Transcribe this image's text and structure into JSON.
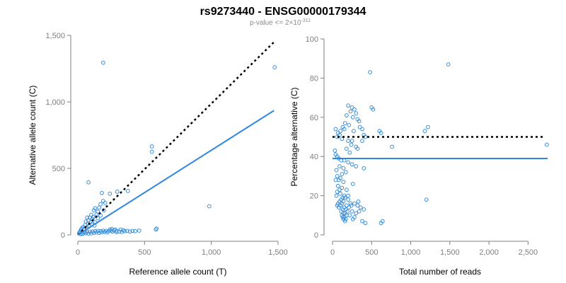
{
  "title": "rs9273440 - ENSG00000179344",
  "subtitle": {
    "text": "p-value <= 2×10",
    "exponent": "-311"
  },
  "colors": {
    "points": "#3a8fd8",
    "fit_line": "#2f86e0",
    "reference_line": "#000000",
    "axis": "#7f7f7f"
  },
  "chart_data": [
    {
      "type": "scatter",
      "title": "",
      "xlabel": "Reference allele count (T)",
      "ylabel": "Alternative allele count (C)",
      "xlim": [
        0,
        1500
      ],
      "ylim": [
        0,
        1500
      ],
      "xticks": [
        0,
        500,
        1000,
        1500
      ],
      "xtick_labels": [
        "0",
        "500",
        "1,000",
        "1,500"
      ],
      "yticks": [
        0,
        500,
        1000,
        1500
      ],
      "ytick_labels": [
        "0",
        "500",
        "1,000",
        "1,500"
      ],
      "grid": false,
      "lines": [
        {
          "style": "dotted",
          "color": "reference",
          "x": [
            0,
            1480
          ],
          "y": [
            0,
            1460
          ]
        },
        {
          "style": "solid",
          "color": "fit",
          "x": [
            0,
            1470
          ],
          "y": [
            0,
            935
          ]
        }
      ],
      "points": [
        [
          190,
          1295
        ],
        [
          1475,
          1260
        ],
        [
          555,
          665
        ],
        [
          555,
          625
        ],
        [
          985,
          215
        ],
        [
          590,
          48
        ],
        [
          585,
          40
        ],
        [
          80,
          395
        ],
        [
          375,
          330
        ],
        [
          240,
          310
        ],
        [
          180,
          315
        ],
        [
          295,
          325
        ],
        [
          190,
          255
        ],
        [
          205,
          240
        ],
        [
          170,
          230
        ],
        [
          160,
          205
        ],
        [
          195,
          185
        ],
        [
          150,
          175
        ],
        [
          130,
          200
        ],
        [
          120,
          185
        ],
        [
          100,
          150
        ],
        [
          140,
          155
        ],
        [
          110,
          120
        ],
        [
          80,
          110
        ],
        [
          60,
          100
        ],
        [
          95,
          95
        ],
        [
          75,
          85
        ],
        [
          55,
          75
        ],
        [
          40,
          60
        ],
        [
          30,
          50
        ],
        [
          25,
          40
        ],
        [
          20,
          30
        ],
        [
          15,
          20
        ],
        [
          10,
          15
        ],
        [
          45,
          45
        ],
        [
          65,
          55
        ],
        [
          85,
          65
        ],
        [
          105,
          80
        ],
        [
          130,
          95
        ],
        [
          125,
          70
        ],
        [
          150,
          125
        ],
        [
          170,
          145
        ],
        [
          90,
          130
        ],
        [
          70,
          130
        ],
        [
          115,
          135
        ],
        [
          50,
          20
        ],
        [
          70,
          22
        ],
        [
          90,
          25
        ],
        [
          110,
          25
        ],
        [
          130,
          28
        ],
        [
          150,
          30
        ],
        [
          170,
          28
        ],
        [
          190,
          32
        ],
        [
          210,
          30
        ],
        [
          230,
          28
        ],
        [
          250,
          32
        ],
        [
          270,
          35
        ],
        [
          290,
          30
        ],
        [
          310,
          25
        ],
        [
          330,
          22
        ],
        [
          350,
          28
        ],
        [
          370,
          30
        ],
        [
          390,
          25
        ],
        [
          410,
          30
        ],
        [
          430,
          28
        ],
        [
          180,
          20
        ],
        [
          200,
          22
        ],
        [
          220,
          18
        ],
        [
          120,
          15
        ],
        [
          140,
          18
        ],
        [
          160,
          15
        ],
        [
          100,
          12
        ],
        [
          80,
          10
        ],
        [
          60,
          12
        ],
        [
          40,
          10
        ],
        [
          30,
          8
        ],
        [
          20,
          6
        ],
        [
          255,
          45
        ],
        [
          280,
          40
        ],
        [
          320,
          40
        ],
        [
          340,
          35
        ],
        [
          260,
          25
        ],
        [
          240,
          40
        ],
        [
          460,
          32
        ],
        [
          290,
          20
        ]
      ]
    },
    {
      "type": "scatter",
      "title": "",
      "xlabel": "Total number of reads",
      "ylabel": "Percentage alternative (C)",
      "xlim": [
        0,
        2750
      ],
      "ylim": [
        0,
        100
      ],
      "xticks": [
        0,
        500,
        1000,
        1500,
        2000,
        2500
      ],
      "xtick_labels": [
        "0",
        "500",
        "1,000",
        "1,500",
        "2,000",
        "2,500"
      ],
      "yticks": [
        0,
        20,
        40,
        60,
        80,
        100
      ],
      "ytick_labels": [
        "0",
        "20",
        "40",
        "60",
        "80",
        "100"
      ],
      "grid": false,
      "lines": [
        {
          "style": "dotted",
          "color": "reference",
          "x": [
            0,
            2700
          ],
          "y": [
            50,
            50
          ]
        },
        {
          "style": "solid",
          "color": "fit",
          "x": [
            0,
            2750
          ],
          "y": [
            39,
            39
          ]
        }
      ],
      "points": [
        [
          1480,
          87
        ],
        [
          480,
          83
        ],
        [
          2740,
          46
        ],
        [
          1200,
          18
        ],
        [
          1220,
          55
        ],
        [
          1180,
          53
        ],
        [
          760,
          45
        ],
        [
          620,
          6
        ],
        [
          640,
          7
        ],
        [
          600,
          53
        ],
        [
          620,
          52
        ],
        [
          500,
          65
        ],
        [
          520,
          64
        ],
        [
          200,
          66
        ],
        [
          250,
          65
        ],
        [
          280,
          64
        ],
        [
          300,
          62
        ],
        [
          230,
          63
        ],
        [
          180,
          61
        ],
        [
          260,
          60
        ],
        [
          320,
          59
        ],
        [
          340,
          58
        ],
        [
          160,
          57
        ],
        [
          210,
          56
        ],
        [
          350,
          55
        ],
        [
          380,
          54
        ],
        [
          130,
          55
        ],
        [
          150,
          54
        ],
        [
          270,
          53
        ],
        [
          100,
          53
        ],
        [
          70,
          52
        ],
        [
          40,
          54
        ],
        [
          60,
          50
        ],
        [
          90,
          51
        ],
        [
          120,
          49
        ],
        [
          200,
          48
        ],
        [
          250,
          48
        ],
        [
          400,
          51
        ],
        [
          420,
          50
        ],
        [
          380,
          48
        ],
        [
          240,
          46
        ],
        [
          300,
          45
        ],
        [
          320,
          44
        ],
        [
          180,
          44
        ],
        [
          220,
          42
        ],
        [
          30,
          43
        ],
        [
          40,
          41
        ],
        [
          60,
          40
        ],
        [
          80,
          39
        ],
        [
          110,
          38
        ],
        [
          150,
          38
        ],
        [
          200,
          37
        ],
        [
          250,
          36
        ],
        [
          300,
          35
        ],
        [
          90,
          35
        ],
        [
          140,
          34
        ],
        [
          400,
          34
        ],
        [
          50,
          33
        ],
        [
          170,
          32
        ],
        [
          120,
          31
        ],
        [
          60,
          30
        ],
        [
          100,
          29
        ],
        [
          80,
          28
        ],
        [
          40,
          28
        ],
        [
          140,
          27
        ],
        [
          260,
          26
        ],
        [
          70,
          25
        ],
        [
          120,
          24
        ],
        [
          180,
          23
        ],
        [
          60,
          22
        ],
        [
          100,
          21
        ],
        [
          150,
          20
        ],
        [
          130,
          19
        ],
        [
          110,
          18
        ],
        [
          160,
          19
        ],
        [
          200,
          18
        ],
        [
          90,
          17
        ],
        [
          140,
          17
        ],
        [
          70,
          16
        ],
        [
          120,
          16
        ],
        [
          180,
          15
        ],
        [
          100,
          15
        ],
        [
          150,
          14
        ],
        [
          80,
          14
        ],
        [
          130,
          13
        ],
        [
          170,
          13
        ],
        [
          110,
          12
        ],
        [
          140,
          11
        ],
        [
          160,
          11
        ],
        [
          120,
          10
        ],
        [
          180,
          10
        ],
        [
          150,
          9
        ],
        [
          130,
          9
        ],
        [
          170,
          8
        ],
        [
          140,
          8
        ],
        [
          160,
          7
        ],
        [
          280,
          16
        ],
        [
          320,
          15
        ],
        [
          360,
          14
        ],
        [
          400,
          13
        ],
        [
          250,
          12
        ],
        [
          300,
          11
        ],
        [
          220,
          10
        ],
        [
          190,
          12
        ],
        [
          210,
          14
        ],
        [
          240,
          15
        ],
        [
          340,
          12
        ],
        [
          380,
          7
        ],
        [
          420,
          6
        ],
        [
          280,
          9
        ],
        [
          260,
          8
        ],
        [
          230,
          16
        ],
        [
          50,
          20
        ],
        [
          90,
          23
        ],
        [
          60,
          15
        ],
        [
          200,
          20
        ],
        [
          330,
          17
        ]
      ]
    }
  ]
}
